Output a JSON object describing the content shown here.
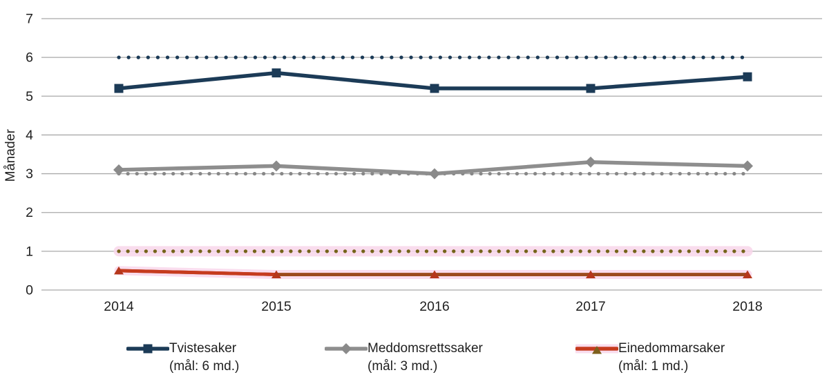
{
  "chart_data": {
    "type": "line",
    "title": "",
    "categories": [
      "2014",
      "2015",
      "2016",
      "2017",
      "2018"
    ],
    "xlabel": "",
    "ylabel": "Månader",
    "ylim": [
      0,
      7
    ],
    "y_ticks": [
      "0",
      "1",
      "2",
      "3",
      "4",
      "5",
      "6",
      "7"
    ],
    "grid": "horizontal",
    "gridline_color": "#a9a9a9",
    "legend_position": "bottom",
    "series": [
      {
        "name": "Tvistesaker",
        "target_label": "(mål: 6 md.)",
        "values": [
          5.2,
          5.6,
          5.2,
          5.2,
          5.5
        ],
        "target": 6,
        "color": "#1c3b57",
        "target_color": "#1c3b57",
        "marker": "square",
        "marker_color": "#1c3b57"
      },
      {
        "name": "Meddomsrettssaker",
        "target_label": "(mål: 3 md.)",
        "values": [
          3.1,
          3.2,
          3.0,
          3.3,
          3.2
        ],
        "target": 3,
        "color": "#8e8e8e",
        "target_color": "#878787",
        "marker": "diamond",
        "marker_color": "#8a8a8a"
      },
      {
        "name": "Einedommarsaker",
        "target_label": "(mål: 1 md.)",
        "values": [
          0.5,
          0.4,
          0.4,
          0.4,
          0.4
        ],
        "target": 1,
        "color": "#9c4b1d",
        "first_segment_color": "#c63b1e",
        "target_color": "#75641a",
        "marker": "triangle",
        "marker_color": "#b5371c",
        "highlight_color": "#f9d7eb",
        "legend_marker_color": "#7d601c"
      }
    ]
  }
}
